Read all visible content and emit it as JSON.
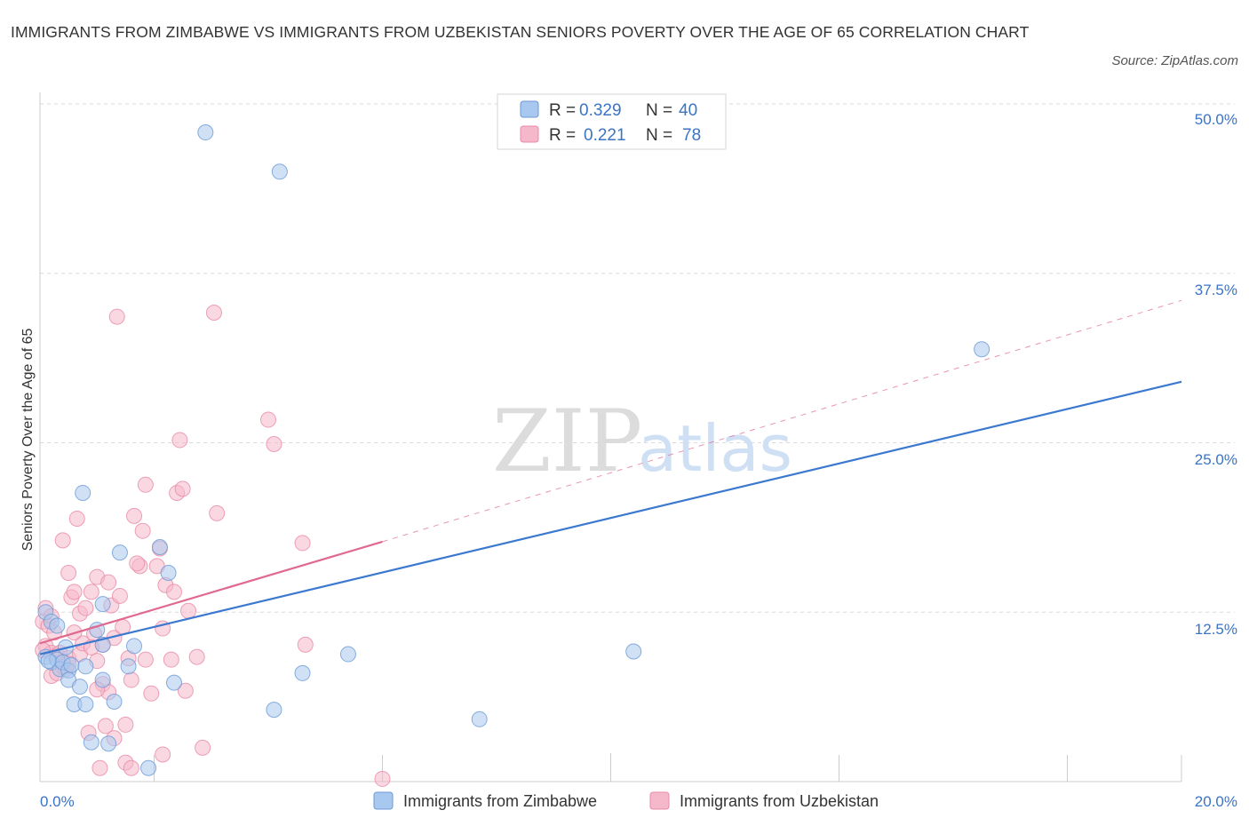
{
  "title": "IMMIGRANTS FROM ZIMBABWE VS IMMIGRANTS FROM UZBEKISTAN SENIORS POVERTY OVER THE AGE OF 65 CORRELATION CHART",
  "source": "Source: ZipAtlas.com",
  "watermark": {
    "zip": "ZIP",
    "atlas": "atlas"
  },
  "legend": {
    "rows": [
      {
        "r_label": "R =",
        "r_value": "0.329",
        "n_label": "N =",
        "n_value": "40",
        "color": "#a9c8ef"
      },
      {
        "r_label": "R =",
        "r_value": "0.221",
        "n_label": "N =",
        "n_value": "78",
        "color": "#f5b8cb"
      }
    ]
  },
  "colors": {
    "zimbabwe_fill": "#a9c8ef",
    "zimbabwe_stroke": "#6a9ad6",
    "zimbabwe_line": "#3b78d0",
    "uzbekistan_fill": "#f5b8cb",
    "uzbekistan_stroke": "#e88aa6",
    "uzbekistan_line": "#e0698f",
    "tick": "#3b74c4",
    "grid": "#d9d9d9"
  },
  "chart_data": {
    "type": "scatter",
    "title": "IMMIGRANTS FROM ZIMBABWE VS IMMIGRANTS FROM UZBEKISTAN SENIORS POVERTY OVER THE AGE OF 65 CORRELATION CHART",
    "xlabel": "",
    "ylabel": "Seniors Poverty Over the Age of 65",
    "xlim": [
      0,
      20
    ],
    "ylim": [
      0,
      50
    ],
    "x_tick_labels": [
      "0.0%",
      "20.0%"
    ],
    "y_ticks": [
      12.5,
      25.0,
      37.5,
      50.0
    ],
    "y_tick_labels": [
      "12.5%",
      "25.0%",
      "37.5%",
      "50.0%"
    ],
    "grid": true,
    "legend_position": "bottom",
    "series": [
      {
        "name": "Immigrants from Zimbabwe",
        "R": 0.329,
        "N": 40,
        "trend": {
          "x": [
            0,
            20
          ],
          "y": [
            9.4,
            29.5
          ],
          "style": "solid"
        },
        "points": [
          [
            0.1,
            12.5
          ],
          [
            0.1,
            9.2
          ],
          [
            0.2,
            11.8
          ],
          [
            0.2,
            8.8
          ],
          [
            0.3,
            9.0
          ],
          [
            0.3,
            11.5
          ],
          [
            0.35,
            8.3
          ],
          [
            0.4,
            8.8
          ],
          [
            0.5,
            8.2
          ],
          [
            0.5,
            7.5
          ],
          [
            0.55,
            8.6
          ],
          [
            0.6,
            5.7
          ],
          [
            0.7,
            7.0
          ],
          [
            0.75,
            21.3
          ],
          [
            0.8,
            8.5
          ],
          [
            0.8,
            5.7
          ],
          [
            0.9,
            2.9
          ],
          [
            1.0,
            11.2
          ],
          [
            1.1,
            13.1
          ],
          [
            1.1,
            10.1
          ],
          [
            1.1,
            7.5
          ],
          [
            1.3,
            5.9
          ],
          [
            1.4,
            16.9
          ],
          [
            1.55,
            8.5
          ],
          [
            1.65,
            10.0
          ],
          [
            1.9,
            1.0
          ],
          [
            2.1,
            17.3
          ],
          [
            2.25,
            15.4
          ],
          [
            2.35,
            7.3
          ],
          [
            2.9,
            47.9
          ],
          [
            4.2,
            45.0
          ],
          [
            4.1,
            5.3
          ],
          [
            4.6,
            8.0
          ],
          [
            5.4,
            9.4
          ],
          [
            7.7,
            4.6
          ],
          [
            10.4,
            9.6
          ],
          [
            16.5,
            31.9
          ],
          [
            0.15,
            8.9
          ],
          [
            0.45,
            9.9
          ],
          [
            1.2,
            2.8
          ]
        ]
      },
      {
        "name": "Immigrants from Uzbekistan",
        "R": 0.221,
        "N": 78,
        "trend": {
          "x": [
            0,
            6.0
          ],
          "y": [
            10.2,
            17.7
          ],
          "style": "solid",
          "extended": {
            "x": [
              6.0,
              20
            ],
            "y": [
              17.7,
              35.5
            ],
            "style": "dashed"
          }
        },
        "points": [
          [
            0.05,
            11.8
          ],
          [
            0.1,
            12.8
          ],
          [
            0.1,
            10.0
          ],
          [
            0.15,
            11.5
          ],
          [
            0.2,
            9.5
          ],
          [
            0.2,
            7.8
          ],
          [
            0.25,
            11.0
          ],
          [
            0.3,
            9.3
          ],
          [
            0.35,
            9.5
          ],
          [
            0.4,
            8.5
          ],
          [
            0.4,
            17.8
          ],
          [
            0.45,
            8.3
          ],
          [
            0.5,
            15.4
          ],
          [
            0.5,
            9.1
          ],
          [
            0.55,
            13.6
          ],
          [
            0.6,
            14.0
          ],
          [
            0.65,
            19.4
          ],
          [
            0.7,
            12.4
          ],
          [
            0.7,
            9.4
          ],
          [
            0.75,
            10.2
          ],
          [
            0.8,
            12.8
          ],
          [
            0.85,
            3.6
          ],
          [
            0.9,
            14.0
          ],
          [
            0.95,
            10.9
          ],
          [
            1.0,
            8.9
          ],
          [
            1.0,
            15.1
          ],
          [
            1.05,
            1.0
          ],
          [
            1.1,
            10.1
          ],
          [
            1.1,
            7.2
          ],
          [
            1.15,
            4.1
          ],
          [
            1.2,
            14.7
          ],
          [
            1.2,
            6.6
          ],
          [
            1.25,
            13.0
          ],
          [
            1.3,
            10.6
          ],
          [
            1.3,
            3.2
          ],
          [
            1.35,
            34.3
          ],
          [
            1.4,
            13.7
          ],
          [
            1.45,
            11.4
          ],
          [
            1.5,
            4.2
          ],
          [
            1.5,
            1.4
          ],
          [
            1.55,
            9.1
          ],
          [
            1.6,
            7.5
          ],
          [
            1.6,
            1.0
          ],
          [
            1.65,
            19.6
          ],
          [
            1.75,
            15.9
          ],
          [
            1.8,
            18.5
          ],
          [
            1.85,
            21.9
          ],
          [
            1.85,
            9.0
          ],
          [
            1.95,
            6.5
          ],
          [
            2.05,
            15.9
          ],
          [
            2.15,
            11.3
          ],
          [
            2.15,
            2.0
          ],
          [
            2.2,
            14.5
          ],
          [
            2.3,
            9.0
          ],
          [
            2.35,
            14.0
          ],
          [
            2.4,
            21.3
          ],
          [
            2.45,
            25.2
          ],
          [
            2.5,
            21.6
          ],
          [
            2.55,
            6.7
          ],
          [
            2.6,
            12.6
          ],
          [
            2.75,
            9.2
          ],
          [
            2.85,
            2.5
          ],
          [
            3.05,
            34.6
          ],
          [
            3.1,
            19.8
          ],
          [
            4.0,
            26.7
          ],
          [
            4.1,
            24.9
          ],
          [
            4.6,
            17.6
          ],
          [
            4.65,
            10.1
          ],
          [
            6.0,
            0.2
          ],
          [
            0.05,
            9.7
          ],
          [
            0.3,
            8.0
          ],
          [
            0.6,
            11.0
          ],
          [
            0.9,
            9.9
          ],
          [
            1.0,
            6.8
          ],
          [
            1.7,
            16.1
          ],
          [
            2.1,
            17.2
          ],
          [
            0.2,
            12.2
          ],
          [
            0.5,
            8.7
          ]
        ]
      }
    ]
  },
  "bottom_legend": [
    {
      "label": "Immigrants from Zimbabwe"
    },
    {
      "label": "Immigrants from Uzbekistan"
    }
  ]
}
